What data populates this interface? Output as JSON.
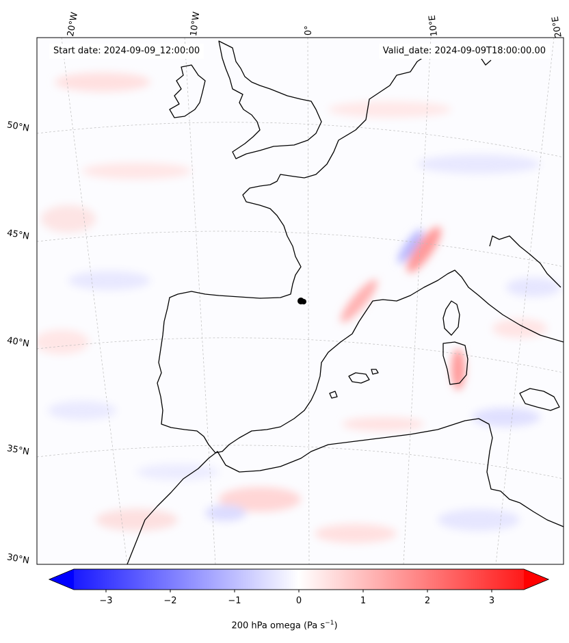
{
  "header": {
    "start_date": "Start date: 2024-09-09_12:00:00",
    "valid_date": "Valid_date: 2024-09-09T18:00:00.00"
  },
  "graticule": {
    "lon_labels": [
      "20°W",
      "10°W",
      "0°",
      "10°E",
      "20°E"
    ],
    "lat_labels": [
      "50°N",
      "45°N",
      "40°N",
      "35°N",
      "30°N"
    ]
  },
  "colorbar": {
    "label_main": "200 hPa omega (Pa s",
    "label_exp": "−1",
    "label_close": ")",
    "ticks": [
      "−3",
      "−2",
      "−1",
      "0",
      "1",
      "2",
      "3"
    ],
    "min_color": "#0000ff",
    "mid_color": "#ffffff",
    "max_color": "#ff0000"
  },
  "colors": {
    "coastline": "#000000",
    "gridline": "#bbbbbb"
  }
}
